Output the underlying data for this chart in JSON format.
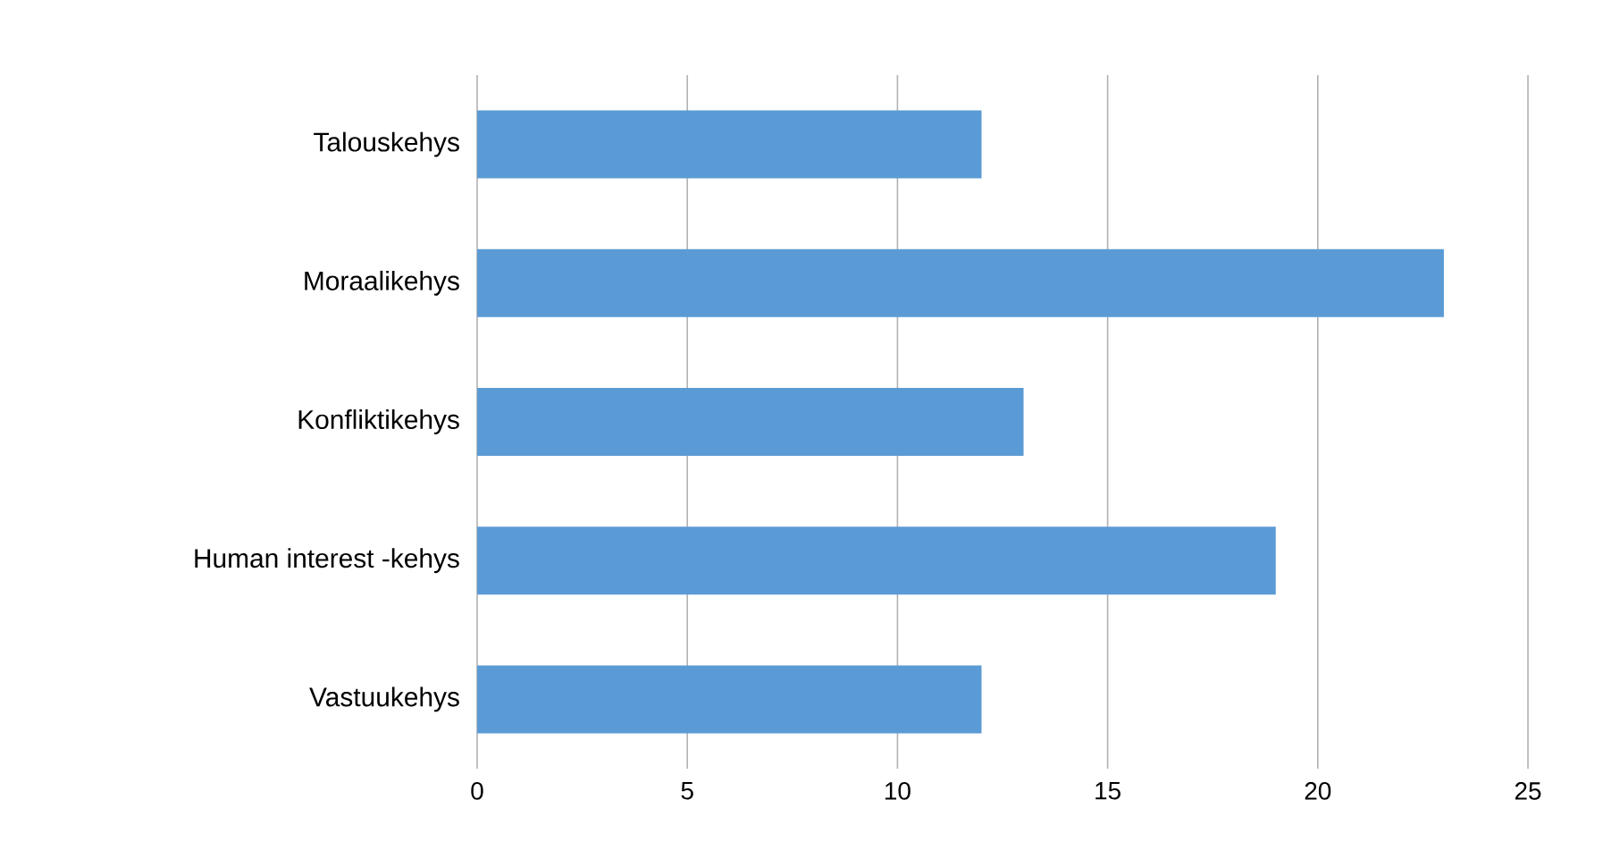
{
  "chart_data": {
    "type": "bar",
    "orientation": "horizontal",
    "categories": [
      "Talouskehys",
      "Moraalikehys",
      "Konfliktikehys",
      "Human interest -kehys",
      "Vastuukehys"
    ],
    "values": [
      12,
      23,
      13,
      19,
      12
    ],
    "color": "#5b9bd5",
    "xlim": [
      0,
      25
    ],
    "xticks": [
      0,
      5,
      10,
      15,
      20,
      25
    ],
    "grid": "x"
  }
}
